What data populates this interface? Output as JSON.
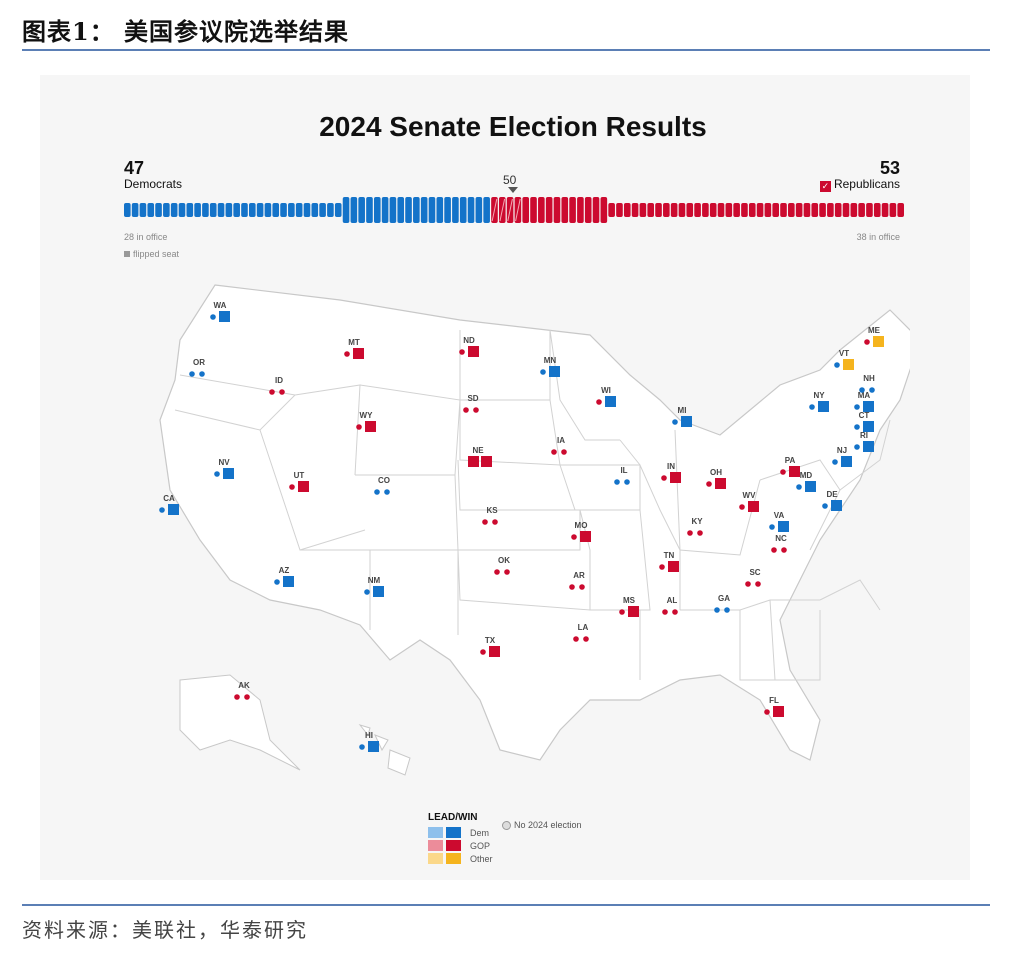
{
  "figure": {
    "title": "图表1： 美国参议院选举结果",
    "source": "资料来源：美联社，华泰研究"
  },
  "chart": {
    "title": "2024 Senate Election Results",
    "dem_count": "47",
    "dem_label": "Democrats",
    "rep_count": "53",
    "rep_label": "Republicans",
    "majority_label": "50",
    "dem_in_office": "28 in office",
    "rep_in_office": "38 in office",
    "flipped_note": "flipped seat"
  },
  "colors": {
    "dem": "#1473c9",
    "dem_light": "#8ec0ec",
    "gop": "#cc0a2f",
    "gop_light": "#ec8c9a",
    "other": "#f5b41e",
    "other_light": "#fbd88a",
    "map_fill": "#ffffff",
    "map_border": "#c8c8c8"
  },
  "seat_bar": {
    "dem_in_office": 28,
    "dem_up_won": 19,
    "gop_flipped": 4,
    "gop_won": 11,
    "gop_in_office": 38
  },
  "legend": {
    "title": "LEAD/WIN",
    "dem": "Dem",
    "gop": "GOP",
    "other": "Other",
    "no_election": "No 2024 election"
  },
  "states": [
    {
      "abbr": "WA",
      "left": "D",
      "right": "D",
      "winner": "D"
    },
    {
      "abbr": "OR",
      "left": "D",
      "right": "D",
      "winner": null
    },
    {
      "abbr": "CA",
      "left": "D",
      "right": "D",
      "winner": "D"
    },
    {
      "abbr": "NV",
      "left": "D",
      "right": "D",
      "winner": "D"
    },
    {
      "abbr": "ID",
      "left": "R",
      "right": "R",
      "winner": null
    },
    {
      "abbr": "MT",
      "left": "R",
      "right": "R",
      "winner": "R"
    },
    {
      "abbr": "WY",
      "left": "R",
      "right": "R",
      "winner": "R"
    },
    {
      "abbr": "UT",
      "left": "R",
      "right": "R",
      "winner": "R"
    },
    {
      "abbr": "AZ",
      "left": "D",
      "right": "D",
      "winner": "D"
    },
    {
      "abbr": "NM",
      "left": "D",
      "right": "D",
      "winner": "D"
    },
    {
      "abbr": "CO",
      "left": "D",
      "right": "D",
      "winner": null
    },
    {
      "abbr": "ND",
      "left": "R",
      "right": "R",
      "winner": "R"
    },
    {
      "abbr": "SD",
      "left": "R",
      "right": "R",
      "winner": null
    },
    {
      "abbr": "NE",
      "left": "R",
      "right": "R",
      "winner": "RR"
    },
    {
      "abbr": "KS",
      "left": "R",
      "right": "R",
      "winner": null
    },
    {
      "abbr": "OK",
      "left": "R",
      "right": "R",
      "winner": null
    },
    {
      "abbr": "TX",
      "left": "R",
      "right": "R",
      "winner": "R"
    },
    {
      "abbr": "MN",
      "left": "D",
      "right": "D",
      "winner": "D"
    },
    {
      "abbr": "IA",
      "left": "R",
      "right": "R",
      "winner": null
    },
    {
      "abbr": "MO",
      "left": "R",
      "right": "R",
      "winner": "R"
    },
    {
      "abbr": "AR",
      "left": "R",
      "right": "R",
      "winner": null
    },
    {
      "abbr": "LA",
      "left": "R",
      "right": "R",
      "winner": null
    },
    {
      "abbr": "WI",
      "left": "R",
      "right": "R",
      "winner": "D"
    },
    {
      "abbr": "IL",
      "left": "D",
      "right": "D",
      "winner": null
    },
    {
      "abbr": "MI",
      "left": "D",
      "right": "D",
      "winner": "D"
    },
    {
      "abbr": "IN",
      "left": "R",
      "right": "R",
      "winner": "R"
    },
    {
      "abbr": "OH",
      "left": "R",
      "right": "R",
      "winner": "R"
    },
    {
      "abbr": "KY",
      "left": "R",
      "right": "R",
      "winner": null
    },
    {
      "abbr": "TN",
      "left": "R",
      "right": "R",
      "winner": "R"
    },
    {
      "abbr": "MS",
      "left": "R",
      "right": "R",
      "winner": "R"
    },
    {
      "abbr": "AL",
      "left": "R",
      "right": "R",
      "winner": null
    },
    {
      "abbr": "GA",
      "left": "D",
      "right": "D",
      "winner": null
    },
    {
      "abbr": "FL",
      "left": "R",
      "right": "R",
      "winner": "R"
    },
    {
      "abbr": "SC",
      "left": "R",
      "right": "R",
      "winner": null
    },
    {
      "abbr": "NC",
      "left": "R",
      "right": "R",
      "winner": null
    },
    {
      "abbr": "WV",
      "left": "R",
      "right": "R",
      "winner": "R"
    },
    {
      "abbr": "VA",
      "left": "D",
      "right": "D",
      "winner": "D"
    },
    {
      "abbr": "PA",
      "left": "R",
      "right": "R",
      "winner": "R"
    },
    {
      "abbr": "NY",
      "left": "D",
      "right": "D",
      "winner": "D"
    },
    {
      "abbr": "MD",
      "left": "D",
      "right": "D",
      "winner": "D"
    },
    {
      "abbr": "DE",
      "left": "D",
      "right": "D",
      "winner": "D"
    },
    {
      "abbr": "NJ",
      "left": "D",
      "right": "D",
      "winner": "D"
    },
    {
      "abbr": "CT",
      "left": "D",
      "right": "D",
      "winner": "D"
    },
    {
      "abbr": "RI",
      "left": "D",
      "right": "D",
      "winner": "D"
    },
    {
      "abbr": "MA",
      "left": "D",
      "right": "D",
      "winner": "D"
    },
    {
      "abbr": "NH",
      "left": "D",
      "right": "D",
      "winner": null
    },
    {
      "abbr": "VT",
      "left": "D",
      "right": "D",
      "winner": "O"
    },
    {
      "abbr": "ME",
      "left": "R",
      "right": "R",
      "winner": "O"
    },
    {
      "abbr": "AK",
      "left": "R",
      "right": "R",
      "winner": null
    },
    {
      "abbr": "HI",
      "left": "D",
      "right": "D",
      "winner": "D"
    }
  ]
}
